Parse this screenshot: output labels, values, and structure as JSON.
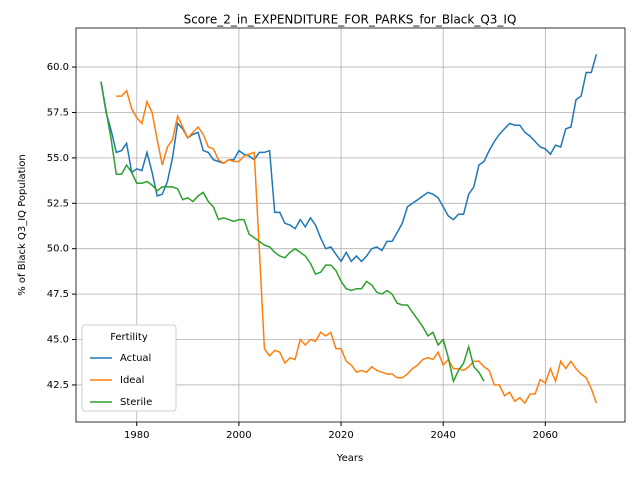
{
  "chart_data": {
    "type": "line",
    "title": "Score_2_in_EXPENDITURE_FOR_PARKS_for_Black_Q3_IQ",
    "x_label": "Years",
    "y_label": "% of Black Q3_IQ Population",
    "legend_title": "Fertility",
    "legend_loc": "lower left",
    "grid": true,
    "xlim": [
      1968.1,
      2075.6
    ],
    "ylim": [
      40.46,
      62.15
    ],
    "xticks": [
      1980,
      2000,
      2020,
      2040,
      2060
    ],
    "yticks": [
      42.5,
      {
        "value": 45,
        "label": "45.0"
      },
      47.5,
      {
        "value": 50,
        "label": "50.0"
      },
      52.5,
      {
        "value": 55,
        "label": "55.0"
      },
      57.5,
      {
        "value": 60,
        "label": "60.0"
      }
    ],
    "x": [
      1973,
      1974,
      1975,
      1976,
      1977,
      1978,
      1979,
      1980,
      1981,
      1982,
      1983,
      1984,
      1985,
      1986,
      1987,
      1988,
      1989,
      1990,
      1991,
      1992,
      1993,
      1994,
      1995,
      1996,
      1997,
      1998,
      1999,
      2000,
      2001,
      2002,
      2003,
      2004,
      2005,
      2006,
      2007,
      2008,
      2009,
      2010,
      2011,
      2012,
      2013,
      2014,
      2015,
      2016,
      2017,
      2018,
      2019,
      2020,
      2021,
      2022,
      2023,
      2024,
      2025,
      2026,
      2027,
      2028,
      2029,
      2030,
      2031,
      2032,
      2033,
      2034,
      2035,
      2036,
      2037,
      2038,
      2039,
      2040,
      2041,
      2042,
      2043,
      2044,
      2045,
      2046,
      2047,
      2048,
      2049,
      2050,
      2051,
      2052,
      2053,
      2054,
      2055,
      2056,
      2057,
      2058,
      2059,
      2060,
      2061,
      2062,
      2063,
      2064,
      2065,
      2066,
      2067,
      2068,
      2069,
      2070
    ],
    "series": [
      {
        "name": "Actual",
        "color": "#1f77b4",
        "values": [
          59.2,
          57.5,
          56.5,
          55.3,
          55.4,
          55.8,
          54.2,
          54.4,
          54.3,
          55.3,
          54.2,
          52.9,
          53.0,
          53.7,
          55.0,
          56.9,
          56.6,
          56.1,
          56.3,
          56.4,
          55.4,
          55.3,
          54.9,
          54.8,
          54.7,
          54.9,
          54.9,
          55.4,
          55.2,
          55.1,
          54.9,
          55.3,
          55.3,
          55.4,
          52.0,
          52.0,
          51.4,
          51.3,
          51.1,
          51.6,
          51.2,
          51.7,
          51.3,
          50.6,
          50.0,
          50.1,
          49.7,
          49.3,
          49.8,
          49.3,
          49.6,
          49.3,
          49.6,
          50.0,
          50.1,
          49.9,
          50.4,
          50.4,
          50.9,
          51.4,
          52.3,
          52.5,
          52.7,
          52.9,
          53.1,
          53.0,
          52.8,
          52.3,
          51.8,
          51.6,
          51.9,
          51.9,
          53.0,
          53.4,
          54.6,
          54.8,
          55.4,
          55.9,
          56.3,
          56.6,
          56.9,
          56.8,
          56.8,
          56.4,
          56.2,
          55.9,
          55.6,
          55.5,
          55.2,
          55.7,
          55.6,
          56.6,
          56.7,
          58.2,
          58.4,
          59.7,
          59.7,
          60.7
        ]
      },
      {
        "name": "Ideal",
        "color": "#ff7f0e",
        "values": [
          null,
          null,
          null,
          58.4,
          58.4,
          58.7,
          57.7,
          57.2,
          56.9,
          58.1,
          57.5,
          56.0,
          54.6,
          55.6,
          56.0,
          57.3,
          56.7,
          56.1,
          56.4,
          56.7,
          56.3,
          55.6,
          55.5,
          54.9,
          54.7,
          54.9,
          54.8,
          54.8,
          55.1,
          55.2,
          55.3,
          50.0,
          44.5,
          44.1,
          44.4,
          44.3,
          43.7,
          44.0,
          43.9,
          45.0,
          44.7,
          45.0,
          44.9,
          45.4,
          45.2,
          45.4,
          44.5,
          44.5,
          43.8,
          43.6,
          43.2,
          43.3,
          43.2,
          43.5,
          43.3,
          43.2,
          43.1,
          43.1,
          42.9,
          42.9,
          43.1,
          43.4,
          43.6,
          43.9,
          44.0,
          43.9,
          44.3,
          43.6,
          43.9,
          43.4,
          43.4,
          43.3,
          43.5,
          43.8,
          43.8,
          43.5,
          43.3,
          42.5,
          42.5,
          41.9,
          42.1,
          41.6,
          41.8,
          41.5,
          42.0,
          42.0,
          42.8,
          42.6,
          43.4,
          42.7,
          43.8,
          43.4,
          43.8,
          43.4,
          43.1,
          42.9,
          42.3,
          41.5
        ]
      },
      {
        "name": "Sterile",
        "color": "#2ca02c",
        "values": [
          59.2,
          57.6,
          56.0,
          54.1,
          54.1,
          54.6,
          54.2,
          53.6,
          53.6,
          53.7,
          53.5,
          53.2,
          53.4,
          53.4,
          53.4,
          53.3,
          52.7,
          52.8,
          52.6,
          52.9,
          53.1,
          52.6,
          52.3,
          51.6,
          51.7,
          51.6,
          51.5,
          51.6,
          51.6,
          50.8,
          50.6,
          50.4,
          50.2,
          50.1,
          49.8,
          49.6,
          49.5,
          49.8,
          50.0,
          49.8,
          49.6,
          49.2,
          48.6,
          48.7,
          49.1,
          49.1,
          48.8,
          48.2,
          47.8,
          47.7,
          47.8,
          47.8,
          48.2,
          48.0,
          47.6,
          47.5,
          47.7,
          47.5,
          47.0,
          46.9,
          46.9,
          46.5,
          46.1,
          45.7,
          45.2,
          45.4,
          44.7,
          45.0,
          44.0,
          42.7,
          43.3,
          43.7,
          44.6,
          43.5,
          43.2,
          42.7,
          null,
          null,
          null,
          null,
          null,
          null,
          null,
          null,
          null,
          null,
          null,
          null,
          null,
          null,
          null,
          null,
          null,
          null,
          null,
          null,
          null,
          null
        ]
      }
    ]
  }
}
